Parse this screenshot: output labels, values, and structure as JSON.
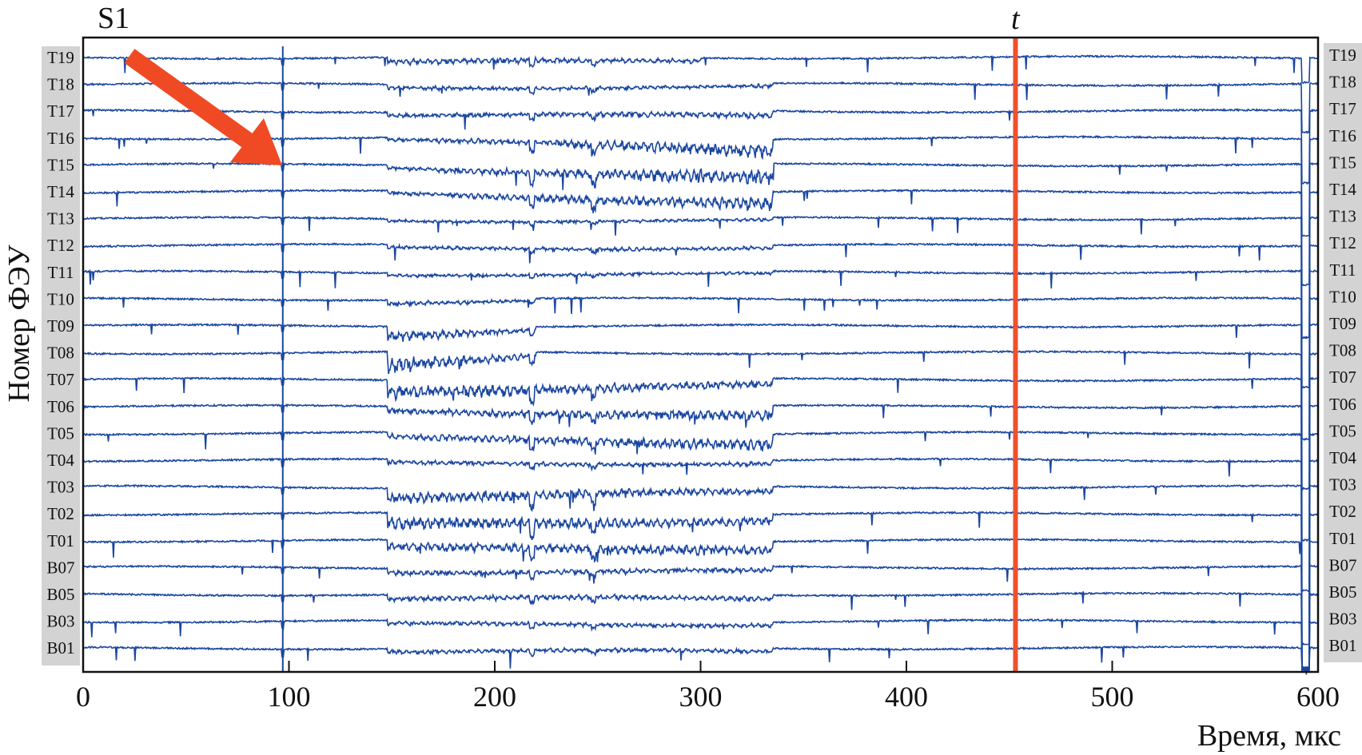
{
  "chart_data": {
    "type": "line",
    "title": "",
    "top_label": "S1",
    "marker_label": "t",
    "xlabel": "Время, мкс",
    "ylabel": "Номер ФЭУ",
    "xlim": [
      0,
      600
    ],
    "xticks": [
      0,
      100,
      200,
      300,
      400,
      500,
      600
    ],
    "xtick_labels": [
      "0",
      "100",
      "200",
      "300",
      "400",
      "500",
      "600"
    ],
    "grid": false,
    "s1_time": 97,
    "marker_time": 453,
    "end_dip_time": 595,
    "channels": [
      "T19",
      "T18",
      "T17",
      "T16",
      "T15",
      "T14",
      "T13",
      "T12",
      "T11",
      "T10",
      "T09",
      "T08",
      "T07",
      "T06",
      "T05",
      "T04",
      "T03",
      "T02",
      "T01",
      "B07",
      "B05",
      "B03",
      "B01"
    ],
    "bursts": [
      [
        [
          148,
          300,
          0.45,
          0.3
        ]
      ],
      [
        [
          148,
          335,
          0.3,
          0.25
        ]
      ],
      [
        [
          148,
          335,
          0.3,
          0.45
        ]
      ],
      [
        [
          148,
          335,
          0.2,
          1.1
        ]
      ],
      [
        [
          148,
          335,
          0.25,
          1.3
        ]
      ],
      [
        [
          148,
          335,
          0.2,
          1.1
        ]
      ],
      [
        [
          148,
          335,
          0.2,
          0.2
        ]
      ],
      [
        [
          148,
          335,
          0.25,
          0.25
        ]
      ],
      [
        [
          148,
          335,
          0.2,
          0.2
        ]
      ],
      [
        [
          148,
          220,
          0.35,
          0.2
        ]
      ],
      [
        [
          148,
          220,
          0.9,
          0.3
        ]
      ],
      [
        [
          148,
          220,
          1.3,
          0.4
        ]
      ],
      [
        [
          148,
          335,
          1.1,
          0.5
        ]
      ],
      [
        [
          148,
          335,
          0.4,
          0.9
        ]
      ],
      [
        [
          148,
          335,
          0.4,
          1.0
        ]
      ],
      [
        [
          148,
          335,
          0.3,
          0.3
        ]
      ],
      [
        [
          148,
          335,
          0.9,
          0.5
        ]
      ],
      [
        [
          148,
          335,
          1.0,
          0.6
        ]
      ],
      [
        [
          148,
          335,
          0.7,
          0.8
        ]
      ],
      [
        [
          148,
          335,
          0.4,
          0.35
        ]
      ],
      [
        [
          148,
          335,
          0.4,
          0.35
        ]
      ],
      [
        [
          148,
          335,
          0.3,
          0.3
        ]
      ],
      [
        [
          148,
          335,
          0.3,
          0.3
        ]
      ]
    ],
    "colors": {
      "trace": "#1a46a0",
      "marker": "#f0502a",
      "arrow": "#f04a25",
      "label_bg": "#d3d3d3"
    }
  }
}
